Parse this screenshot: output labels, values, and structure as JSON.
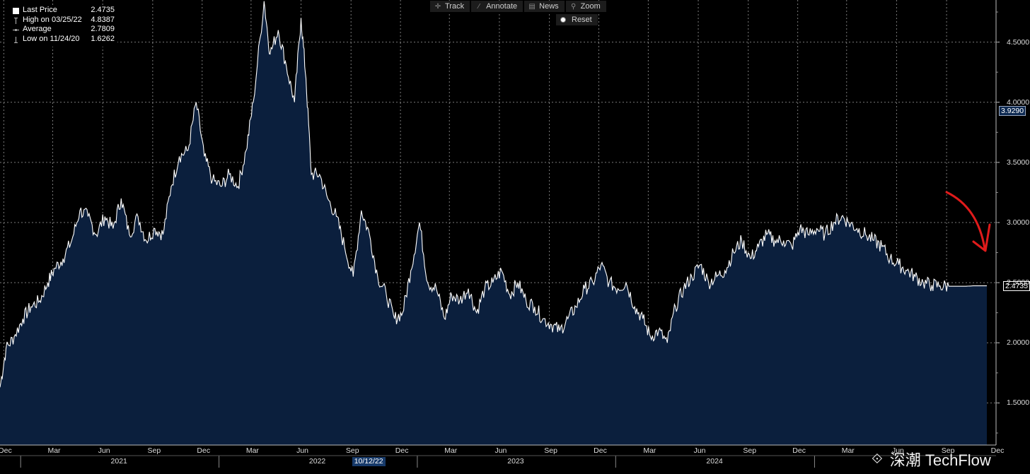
{
  "legend": {
    "rows": [
      {
        "label": "Last Price",
        "value": "2.4735"
      },
      {
        "label": "High on 03/25/22",
        "value": "4.8387"
      },
      {
        "label": "Average",
        "value": "2.7809"
      },
      {
        "label": "Low on 11/24/20",
        "value": "1.6262"
      }
    ]
  },
  "toolbar": {
    "track": "Track",
    "annotate": "Annotate",
    "news": "News",
    "zoom": "Zoom",
    "reset": "Reset"
  },
  "watermark": "深潮 TechFlow",
  "annotation": {
    "type": "arrow",
    "color": "#e01b1b"
  },
  "colors": {
    "line": "#ffffff",
    "area": "#0b1f3d",
    "grid": "#7a7a7a",
    "background": "#000000"
  },
  "chart_data": {
    "type": "area",
    "title": "",
    "xlabel": "",
    "ylabel": "",
    "ylim": [
      1.15,
      4.85
    ],
    "xlim": [
      "2020-11-24",
      "2025-12-01"
    ],
    "grid": true,
    "legend_position": "top-left",
    "y_axis_side": "right",
    "yticks": [
      "1.5000",
      "2.0000",
      "2.5000",
      "3.0000",
      "3.5000",
      "4.0000",
      "4.5000"
    ],
    "y_flags": [
      {
        "value": 3.929,
        "label": "3.9290",
        "style": "blue"
      },
      {
        "value": 2.4735,
        "label": "2.4735",
        "style": "outline"
      }
    ],
    "x_month_ticks": [
      {
        "date": "2020-12-01",
        "label": "Dec"
      },
      {
        "date": "2021-03-01",
        "label": "Mar"
      },
      {
        "date": "2021-06-01",
        "label": "Jun"
      },
      {
        "date": "2021-09-01",
        "label": "Sep"
      },
      {
        "date": "2021-12-01",
        "label": "Dec"
      },
      {
        "date": "2022-03-01",
        "label": "Mar"
      },
      {
        "date": "2022-06-01",
        "label": "Jun"
      },
      {
        "date": "2022-09-01",
        "label": "Sep"
      },
      {
        "date": "2022-12-01",
        "label": "Dec"
      },
      {
        "date": "2023-03-01",
        "label": "Mar"
      },
      {
        "date": "2023-06-01",
        "label": "Jun"
      },
      {
        "date": "2023-09-01",
        "label": "Sep"
      },
      {
        "date": "2023-12-01",
        "label": "Dec"
      },
      {
        "date": "2024-03-01",
        "label": "Mar"
      },
      {
        "date": "2024-06-01",
        "label": "Jun"
      },
      {
        "date": "2024-09-01",
        "label": "Sep"
      },
      {
        "date": "2024-12-01",
        "label": "Dec"
      },
      {
        "date": "2025-03-01",
        "label": "Mar"
      },
      {
        "date": "2025-06-01",
        "label": "Jun"
      },
      {
        "date": "2025-09-01",
        "label": "Sep"
      },
      {
        "date": "2025-12-01",
        "label": "Dec"
      }
    ],
    "x_year_labels": [
      {
        "date": "2021-07-01",
        "label": "2021"
      },
      {
        "date": "2022-07-01",
        "label": "2022"
      },
      {
        "date": "2023-07-01",
        "label": "2023"
      },
      {
        "date": "2024-07-01",
        "label": "2024"
      }
    ],
    "x_cursor_label": {
      "date": "2022-10-12",
      "label": "10/12/22"
    },
    "series": [
      {
        "x": [
          "2020-11-24",
          "2020-12-05",
          "2020-12-20",
          "2021-01-05",
          "2021-01-20",
          "2021-02-05",
          "2021-02-20",
          "2021-03-05",
          "2021-03-20",
          "2021-04-05",
          "2021-04-20",
          "2021-05-05",
          "2021-05-20",
          "2021-06-05",
          "2021-06-20",
          "2021-07-05",
          "2021-07-20",
          "2021-08-05",
          "2021-08-20",
          "2021-09-05",
          "2021-09-20",
          "2021-10-05",
          "2021-10-20",
          "2021-11-05",
          "2021-11-20",
          "2021-12-05",
          "2021-12-20",
          "2022-01-05",
          "2022-01-20",
          "2022-02-05",
          "2022-02-20",
          "2022-03-05",
          "2022-03-25",
          "2022-04-05",
          "2022-04-20",
          "2022-05-05",
          "2022-05-20",
          "2022-06-01",
          "2022-06-10",
          "2022-06-20",
          "2022-07-05",
          "2022-07-20",
          "2022-08-05",
          "2022-08-20",
          "2022-09-05",
          "2022-09-20",
          "2022-10-05",
          "2022-10-20",
          "2022-11-05",
          "2022-11-20",
          "2022-12-05",
          "2022-12-20",
          "2023-01-05",
          "2023-01-20",
          "2023-02-05",
          "2023-02-20",
          "2023-03-05",
          "2023-03-20",
          "2023-04-05",
          "2023-04-20",
          "2023-05-05",
          "2023-05-20",
          "2023-06-05",
          "2023-06-20",
          "2023-07-05",
          "2023-07-20",
          "2023-08-05",
          "2023-08-20",
          "2023-09-05",
          "2023-09-20",
          "2023-10-05",
          "2023-10-20",
          "2023-11-05",
          "2023-11-20",
          "2023-12-05",
          "2023-12-20",
          "2024-01-05",
          "2024-01-20",
          "2024-02-05",
          "2024-02-20",
          "2024-03-05",
          "2024-03-20",
          "2024-04-05",
          "2024-04-20",
          "2024-05-05",
          "2024-05-20",
          "2024-06-05",
          "2024-06-20",
          "2024-07-05",
          "2024-07-20",
          "2024-08-05",
          "2024-08-20",
          "2024-09-05",
          "2024-09-20",
          "2024-10-05",
          "2024-10-20",
          "2024-11-05",
          "2024-11-20",
          "2024-12-05",
          "2024-12-20",
          "2025-01-05",
          "2025-01-20",
          "2025-02-05",
          "2025-02-20",
          "2025-03-05",
          "2025-03-20",
          "2025-04-05",
          "2025-04-20",
          "2025-05-05",
          "2025-05-20",
          "2025-06-05",
          "2025-06-20",
          "2025-07-05",
          "2025-07-20",
          "2025-08-05",
          "2025-08-20",
          "2025-09-05",
          "2025-09-20",
          "2025-10-05",
          "2025-10-20",
          "2025-11-05",
          "2025-11-20"
        ],
        "values": [
          1.63,
          1.95,
          2.05,
          2.2,
          2.3,
          2.35,
          2.5,
          2.62,
          2.7,
          2.85,
          3.1,
          3.05,
          2.9,
          3.05,
          2.95,
          3.2,
          2.9,
          3.05,
          2.85,
          2.95,
          2.9,
          3.3,
          3.55,
          3.6,
          4.0,
          3.55,
          3.35,
          3.3,
          3.4,
          3.3,
          3.6,
          4.0,
          4.84,
          4.4,
          4.6,
          4.3,
          4.0,
          4.7,
          4.2,
          3.4,
          3.4,
          3.2,
          3.05,
          2.8,
          2.55,
          3.1,
          2.9,
          2.55,
          2.4,
          2.2,
          2.25,
          2.6,
          3.0,
          2.5,
          2.45,
          2.2,
          2.4,
          2.35,
          2.45,
          2.25,
          2.45,
          2.5,
          2.6,
          2.4,
          2.5,
          2.35,
          2.3,
          2.2,
          2.15,
          2.1,
          2.2,
          2.3,
          2.45,
          2.5,
          2.65,
          2.5,
          2.45,
          2.5,
          2.3,
          2.2,
          2.05,
          2.1,
          2.0,
          2.3,
          2.45,
          2.55,
          2.65,
          2.5,
          2.55,
          2.6,
          2.75,
          2.85,
          2.7,
          2.8,
          2.9,
          2.85,
          2.85,
          2.8,
          2.95,
          2.9,
          2.95,
          2.9,
          3.0,
          3.05,
          3.0,
          2.95,
          2.9,
          2.85,
          2.8,
          2.7,
          2.65,
          2.6,
          2.55,
          2.5,
          2.48,
          2.4735,
          2.47,
          2.47,
          2.47,
          2.4735,
          2.4735,
          2.4735
        ]
      }
    ]
  }
}
